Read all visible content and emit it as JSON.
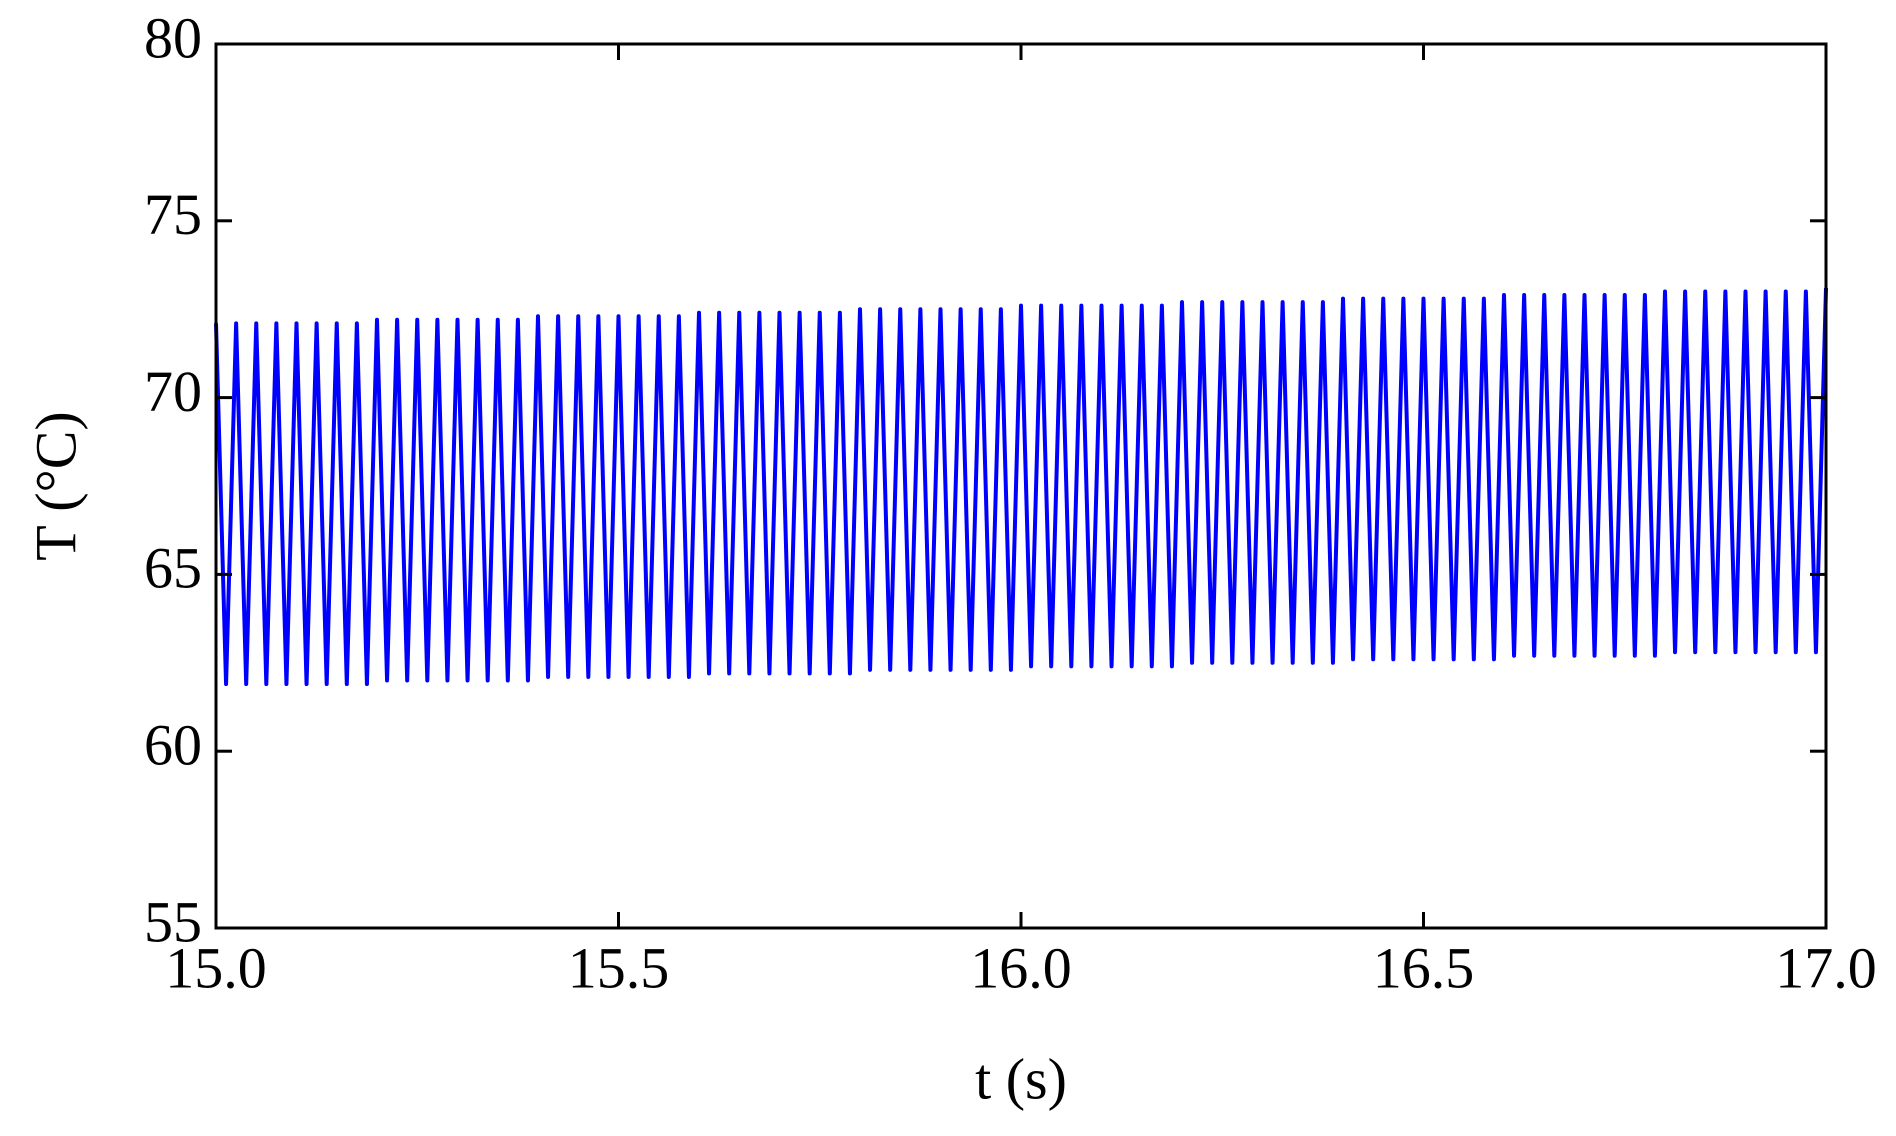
{
  "chart_data": {
    "type": "line",
    "x_label": "t (s)",
    "y_label": "T (°C)",
    "xlim": [
      15,
      17
    ],
    "ylim": [
      55,
      80
    ],
    "xticks": [
      {
        "value": 15,
        "label": "15.0"
      },
      15.5,
      {
        "value": 16,
        "label": "16.0"
      },
      16.5,
      {
        "value": 17,
        "label": "17.0"
      }
    ],
    "yticks": [
      55,
      60,
      65,
      70,
      75,
      80
    ],
    "x": [
      15,
      15.0125,
      15.025,
      15.0375,
      15.05,
      15.0625,
      15.075,
      15.0875,
      15.1,
      15.1125,
      15.125,
      15.1375,
      15.15,
      15.1625,
      15.175,
      15.1875,
      15.2,
      15.2125,
      15.225,
      15.2375,
      15.25,
      15.2625,
      15.275,
      15.2875,
      15.3,
      15.3125,
      15.325,
      15.3375,
      15.35,
      15.3625,
      15.375,
      15.3875,
      15.4,
      15.4125,
      15.425,
      15.4375,
      15.45,
      15.4625,
      15.475,
      15.4875,
      15.5,
      15.5125,
      15.525,
      15.5375,
      15.55,
      15.5625,
      15.575,
      15.5875,
      15.6,
      15.6125,
      15.625,
      15.6375,
      15.65,
      15.6625,
      15.675,
      15.6875,
      15.7,
      15.7125,
      15.725,
      15.7375,
      15.75,
      15.7625,
      15.775,
      15.7875,
      15.8,
      15.8125,
      15.825,
      15.8375,
      15.85,
      15.8625,
      15.875,
      15.8875,
      15.9,
      15.9125,
      15.925,
      15.9375,
      15.95,
      15.9625,
      15.975,
      15.9875,
      16,
      16.0125,
      16.025,
      16.0375,
      16.05,
      16.0625,
      16.075,
      16.0875,
      16.1,
      16.1125,
      16.125,
      16.1375,
      16.15,
      16.1625,
      16.175,
      16.1875,
      16.2,
      16.2125,
      16.225,
      16.2375,
      16.25,
      16.2625,
      16.275,
      16.2875,
      16.3,
      16.3125,
      16.325,
      16.3375,
      16.35,
      16.3625,
      16.375,
      16.3875,
      16.4,
      16.4125,
      16.425,
      16.4375,
      16.45,
      16.4625,
      16.475,
      16.4875,
      16.5,
      16.5125,
      16.525,
      16.5375,
      16.55,
      16.5625,
      16.575,
      16.5875,
      16.6,
      16.6125,
      16.625,
      16.6375,
      16.65,
      16.6625,
      16.675,
      16.6875,
      16.7,
      16.7125,
      16.725,
      16.7375,
      16.75,
      16.7625,
      16.775,
      16.7875,
      16.8,
      16.8125,
      16.825,
      16.8375,
      16.85,
      16.8625,
      16.875,
      16.8875,
      16.9,
      16.9125,
      16.925,
      16.9375,
      16.95,
      16.9625,
      16.975,
      16.9875,
      17
    ],
    "series": [
      {
        "color": "#0000ff",
        "values": [
          72.1,
          61.9,
          72.1,
          61.9,
          72.1,
          61.9,
          72.1,
          61.9,
          72.1,
          61.9,
          72.1,
          61.9,
          72.1,
          61.9,
          72.1,
          61.9,
          72.2,
          62.0,
          72.2,
          62.0,
          72.2,
          62.0,
          72.2,
          62.0,
          72.2,
          62.0,
          72.2,
          62.0,
          72.2,
          62.0,
          72.2,
          62.0,
          72.3,
          62.1,
          72.3,
          62.1,
          72.3,
          62.1,
          72.3,
          62.1,
          72.3,
          62.1,
          72.3,
          62.1,
          72.3,
          62.1,
          72.3,
          62.1,
          72.4,
          62.2,
          72.4,
          62.2,
          72.4,
          62.2,
          72.4,
          62.2,
          72.4,
          62.2,
          72.4,
          62.2,
          72.4,
          62.2,
          72.4,
          62.2,
          72.5,
          62.3,
          72.5,
          62.3,
          72.5,
          62.3,
          72.5,
          62.3,
          72.5,
          62.3,
          72.5,
          62.3,
          72.5,
          62.3,
          72.5,
          62.3,
          72.6,
          62.4,
          72.6,
          62.4,
          72.6,
          62.4,
          72.6,
          62.4,
          72.6,
          62.4,
          72.6,
          62.4,
          72.6,
          62.4,
          72.6,
          62.4,
          72.7,
          62.5,
          72.7,
          62.5,
          72.7,
          62.5,
          72.7,
          62.5,
          72.7,
          62.5,
          72.7,
          62.5,
          72.7,
          62.5,
          72.7,
          62.5,
          72.8,
          62.6,
          72.8,
          62.6,
          72.8,
          62.6,
          72.8,
          62.6,
          72.8,
          62.6,
          72.8,
          62.6,
          72.8,
          62.6,
          72.8,
          62.6,
          72.9,
          62.7,
          72.9,
          62.7,
          72.9,
          62.7,
          72.9,
          62.7,
          72.9,
          62.7,
          72.9,
          62.7,
          72.9,
          62.7,
          72.9,
          62.7,
          73.0,
          62.8,
          73.0,
          62.8,
          73.0,
          62.8,
          73.0,
          62.8,
          73.0,
          62.8,
          73.0,
          62.8,
          73.0,
          62.8,
          73.0,
          62.8,
          73.1
        ]
      }
    ]
  }
}
